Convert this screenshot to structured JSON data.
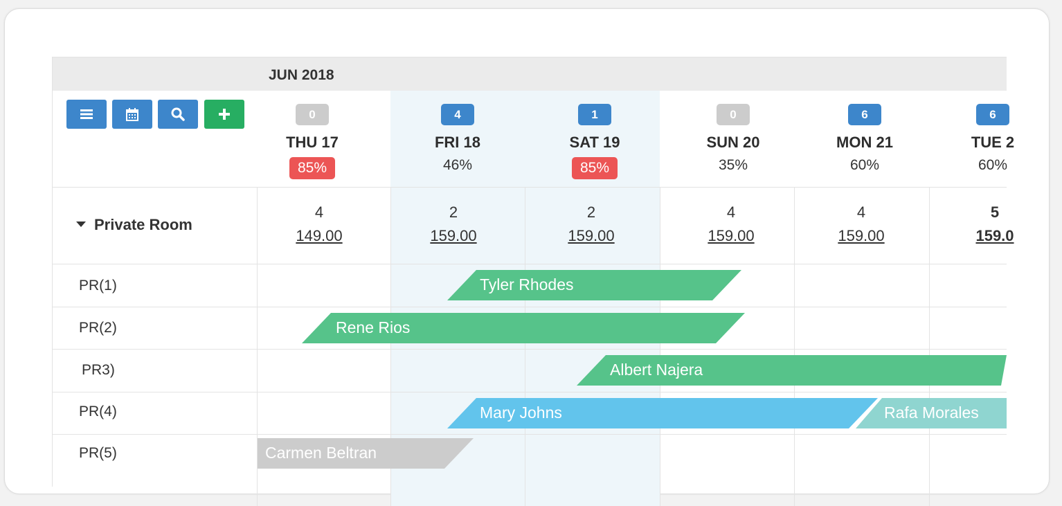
{
  "header": {
    "month": "JUN 2018"
  },
  "toolbar": {
    "buttons": [
      {
        "name": "list-button",
        "icon": "list-icon",
        "color": "#3d86cb"
      },
      {
        "name": "calendar-button",
        "icon": "calendar-icon",
        "color": "#3d86cb"
      },
      {
        "name": "search-button",
        "icon": "search-icon",
        "color": "#3d86cb"
      },
      {
        "name": "add-button",
        "icon": "plus-icon",
        "color": "#27ae62"
      }
    ]
  },
  "days": [
    {
      "count": "0",
      "label": "THU 17",
      "occupancy": "85%"
    },
    {
      "count": "4",
      "label": "FRI 18",
      "occupancy": "46%"
    },
    {
      "count": "1",
      "label": "SAT 19",
      "occupancy": "85%"
    },
    {
      "count": "0",
      "label": "SUN 20",
      "occupancy": "35%"
    },
    {
      "count": "6",
      "label": "MON 21",
      "occupancy": "60%"
    },
    {
      "count": "6",
      "label": "TUE 2",
      "occupancy": "60%"
    }
  ],
  "room_type": {
    "label": "Private Room",
    "rates": [
      {
        "available": "4",
        "price": "149.00"
      },
      {
        "available": "2",
        "price": "159.00"
      },
      {
        "available": "2",
        "price": "159.00"
      },
      {
        "available": "4",
        "price": "159.00"
      },
      {
        "available": "4",
        "price": "159.00"
      },
      {
        "available": "5",
        "price": "159.0"
      }
    ]
  },
  "units": [
    "PR(1)",
    "PR(2)",
    "PR3)",
    "PR(4)",
    "PR(5)"
  ],
  "bookings": [
    {
      "guest": "Tyler Rhodes",
      "color": "#56c38a"
    },
    {
      "guest": "Rene Rios",
      "color": "#56c38a"
    },
    {
      "guest": "Albert Najera",
      "color": "#56c38a"
    },
    {
      "guest": "Mary Johns",
      "color": "#62c4ec"
    },
    {
      "guest": "Rafa Morales",
      "color": "#8fd5d0"
    },
    {
      "guest": "Carmen Beltran",
      "color": "#cccccc"
    }
  ],
  "colors": {
    "occupancy_high": "#ec5555",
    "badge_gray": "#cccccc",
    "badge_blue": "#3d86cb"
  }
}
